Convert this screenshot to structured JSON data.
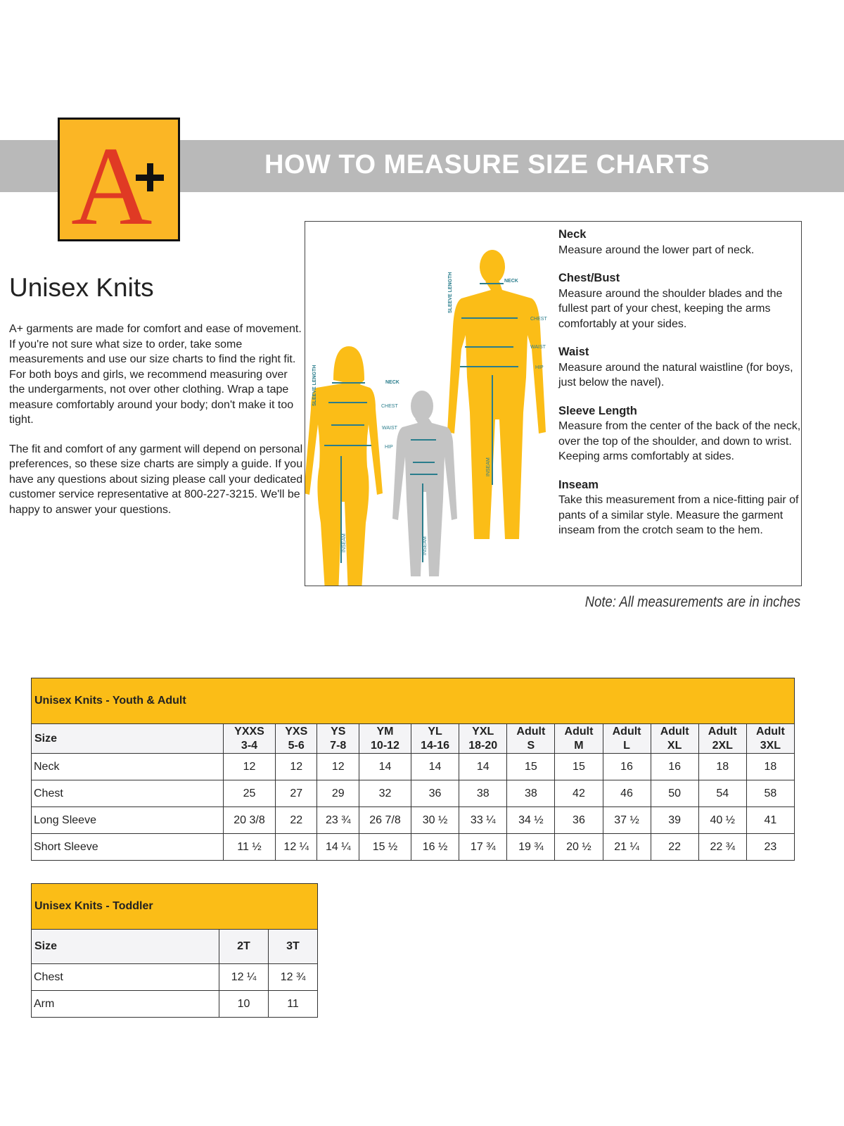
{
  "header": {
    "title": "HOW TO MEASURE SIZE CHARTS",
    "logo_text": "A+"
  },
  "section_title": "Unisex Knits",
  "intro": [
    "A+ garments are made for comfort and ease of movement. If you're not sure what size to order, take some measurements and use our size charts to find the right fit. For both boys and girls, we recommend measuring over the undergarments, not over other clothing. Wrap a tape measure comfortably around your body; don't make it too tight.",
    "The fit and comfort of any garment will depend on personal preferences, so these size charts are simply a guide. If you have any questions about sizing please call your dedicated customer service representative at 800-227-3215. We'll be happy to answer your questions."
  ],
  "diagram": {
    "labels": {
      "neck": "NECK",
      "chest": "CHEST",
      "waist": "WAIST",
      "hip": "HIP",
      "sleeve": "SLEEVE LENGTH",
      "inseam": "INSEAM"
    },
    "colors": {
      "adult": "#fbbd17",
      "child": "#c4c4c4",
      "line": "#2a7d8c"
    },
    "definitions": [
      {
        "term": "Neck",
        "text": "Measure around the lower part of neck."
      },
      {
        "term": "Chest/Bust",
        "text": "Measure around the shoulder blades and the fullest part of your chest, keeping the arms comfortably at your sides."
      },
      {
        "term": "Waist",
        "text": "Measure around the natural waistline (for boys, just below the navel)."
      },
      {
        "term": "Sleeve Length",
        "text": "Measure from the center of the back of the neck, over the top of the shoulder, and down to wrist. Keeping arms comfortably at sides."
      },
      {
        "term": "Inseam",
        "text": "Take this measurement from a nice-fitting pair of pants of a similar style. Measure the garment inseam from the crotch seam to the hem."
      }
    ]
  },
  "note": "Note: All measurements are in inches",
  "table_youth_adult": {
    "caption": "Unisex Knits - Youth & Adult",
    "size_label": "Size",
    "sizes": [
      [
        "YXXS",
        "3-4"
      ],
      [
        "YXS",
        "5-6"
      ],
      [
        "YS",
        "7-8"
      ],
      [
        "YM",
        "10-12"
      ],
      [
        "YL",
        "14-16"
      ],
      [
        "YXL",
        "18-20"
      ],
      [
        "Adult",
        "S"
      ],
      [
        "Adult",
        "M"
      ],
      [
        "Adult",
        "L"
      ],
      [
        "Adult",
        "XL"
      ],
      [
        "Adult",
        "2XL"
      ],
      [
        "Adult",
        "3XL"
      ]
    ],
    "rows": [
      {
        "label": "Neck",
        "values": [
          "12",
          "12",
          "12",
          "14",
          "14",
          "14",
          "15",
          "15",
          "16",
          "16",
          "18",
          "18"
        ]
      },
      {
        "label": "Chest",
        "values": [
          "25",
          "27",
          "29",
          "32",
          "36",
          "38",
          "38",
          "42",
          "46",
          "50",
          "54",
          "58"
        ]
      },
      {
        "label": "Long Sleeve",
        "values": [
          "20 3/8",
          "22",
          "23 ¾",
          "26 7/8",
          "30 ½",
          "33 ¼",
          "34 ½",
          "36",
          "37 ½",
          "39",
          "40 ½",
          "41"
        ]
      },
      {
        "label": "Short Sleeve",
        "values": [
          "11 ½",
          "12 ¼",
          "14 ¼",
          "15 ½",
          "16 ½",
          "17 ¾",
          "19 ¾",
          "20 ½",
          "21 ¼",
          "22",
          "22 ¾",
          "23"
        ]
      }
    ]
  },
  "table_toddler": {
    "caption": "Unisex Knits - Toddler",
    "size_label": "Size",
    "sizes": [
      "2T",
      "3T"
    ],
    "rows": [
      {
        "label": "Chest",
        "values": [
          "12 ¼",
          "12 ¾"
        ]
      },
      {
        "label": "Arm",
        "values": [
          "10",
          "11"
        ]
      }
    ]
  }
}
